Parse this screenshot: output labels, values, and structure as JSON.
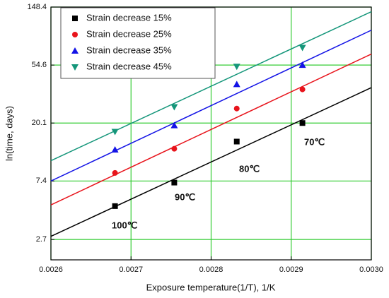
{
  "chart_data": {
    "type": "scatter",
    "x_label": "Exposure temperature(1/T), 1/K",
    "y_label": "ln(time, days)",
    "x": [
      0.00268,
      0.002754,
      0.002832,
      0.002914
    ],
    "fit_x": [
      0.0026,
      0.003
    ],
    "series": [
      {
        "name": "Strain decrease 15%",
        "color": "#000000",
        "marker": "square",
        "values": [
          4.8,
          7.2,
          14.6,
          20.1
        ],
        "fit": [
          2.85,
          37
        ]
      },
      {
        "name": "Strain decrease 25%",
        "color": "#e8141c",
        "marker": "circle",
        "values": [
          8.5,
          12.9,
          25.8,
          35.9
        ],
        "fit": [
          4.9,
          66
        ]
      },
      {
        "name": "Strain decrease 35%",
        "color": "#1414e6",
        "marker": "triangle-up",
        "values": [
          12.7,
          19.3,
          39.2,
          54.6
        ],
        "fit": [
          7.4,
          99.6
        ]
      },
      {
        "name": "Strain decrease 45%",
        "color": "#14967a",
        "marker": "triangle-down",
        "values": [
          17.3,
          26.5,
          53.2,
          73.7
        ],
        "fit": [
          10.5,
          137
        ]
      }
    ],
    "annotations": [
      "100℃",
      "90℃",
      "80℃",
      "70℃"
    ],
    "xlim": [
      0.0026,
      0.003
    ],
    "xticks": [
      0.0026,
      0.0027,
      0.0028,
      0.0029,
      {
        "value": 0.003,
        "label": "0.0030"
      }
    ],
    "ylim": [
      1.9,
      148.4
    ],
    "yticks": [
      2.7,
      7.4,
      20.1,
      54.6,
      148.4
    ],
    "log_y": true,
    "grid": true,
    "legend": "upper left"
  }
}
